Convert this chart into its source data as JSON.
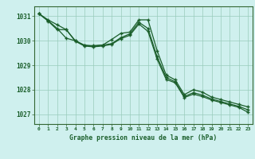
{
  "title": "Graphe pression niveau de la mer (hPa)",
  "background_color": "#cff0ee",
  "grid_color": "#99ccbb",
  "line_color": "#1a5e2a",
  "spine_color": "#336633",
  "xlim": [
    -0.5,
    23.5
  ],
  "ylim": [
    1026.6,
    1031.4
  ],
  "yticks": [
    1027,
    1028,
    1029,
    1030,
    1031
  ],
  "xticks": [
    0,
    1,
    2,
    3,
    4,
    5,
    6,
    7,
    8,
    9,
    10,
    11,
    12,
    13,
    14,
    15,
    16,
    17,
    18,
    19,
    20,
    21,
    22,
    23
  ],
  "series1": [
    1031.1,
    1030.85,
    1030.65,
    1030.45,
    1030.0,
    1029.8,
    1029.8,
    1029.82,
    1030.05,
    1030.3,
    1030.35,
    1030.85,
    1030.85,
    1029.6,
    1028.6,
    1028.4,
    1027.8,
    1028.0,
    1027.9,
    1027.7,
    1027.6,
    1027.5,
    1027.4,
    1027.3
  ],
  "series2": [
    1031.1,
    1030.82,
    1030.5,
    1030.1,
    1030.0,
    1029.82,
    1029.78,
    1029.82,
    1029.88,
    1030.12,
    1030.28,
    1030.75,
    1030.5,
    1029.35,
    1028.5,
    1028.32,
    1027.72,
    1027.88,
    1027.78,
    1027.62,
    1027.52,
    1027.42,
    1027.32,
    1027.18
  ],
  "series3": [
    1031.1,
    1030.8,
    1030.45,
    1030.45,
    1029.98,
    1029.78,
    1029.75,
    1029.78,
    1029.85,
    1030.08,
    1030.22,
    1030.68,
    1030.38,
    1029.25,
    1028.42,
    1028.28,
    1027.68,
    1027.82,
    1027.72,
    1027.58,
    1027.48,
    1027.38,
    1027.28,
    1027.08
  ]
}
